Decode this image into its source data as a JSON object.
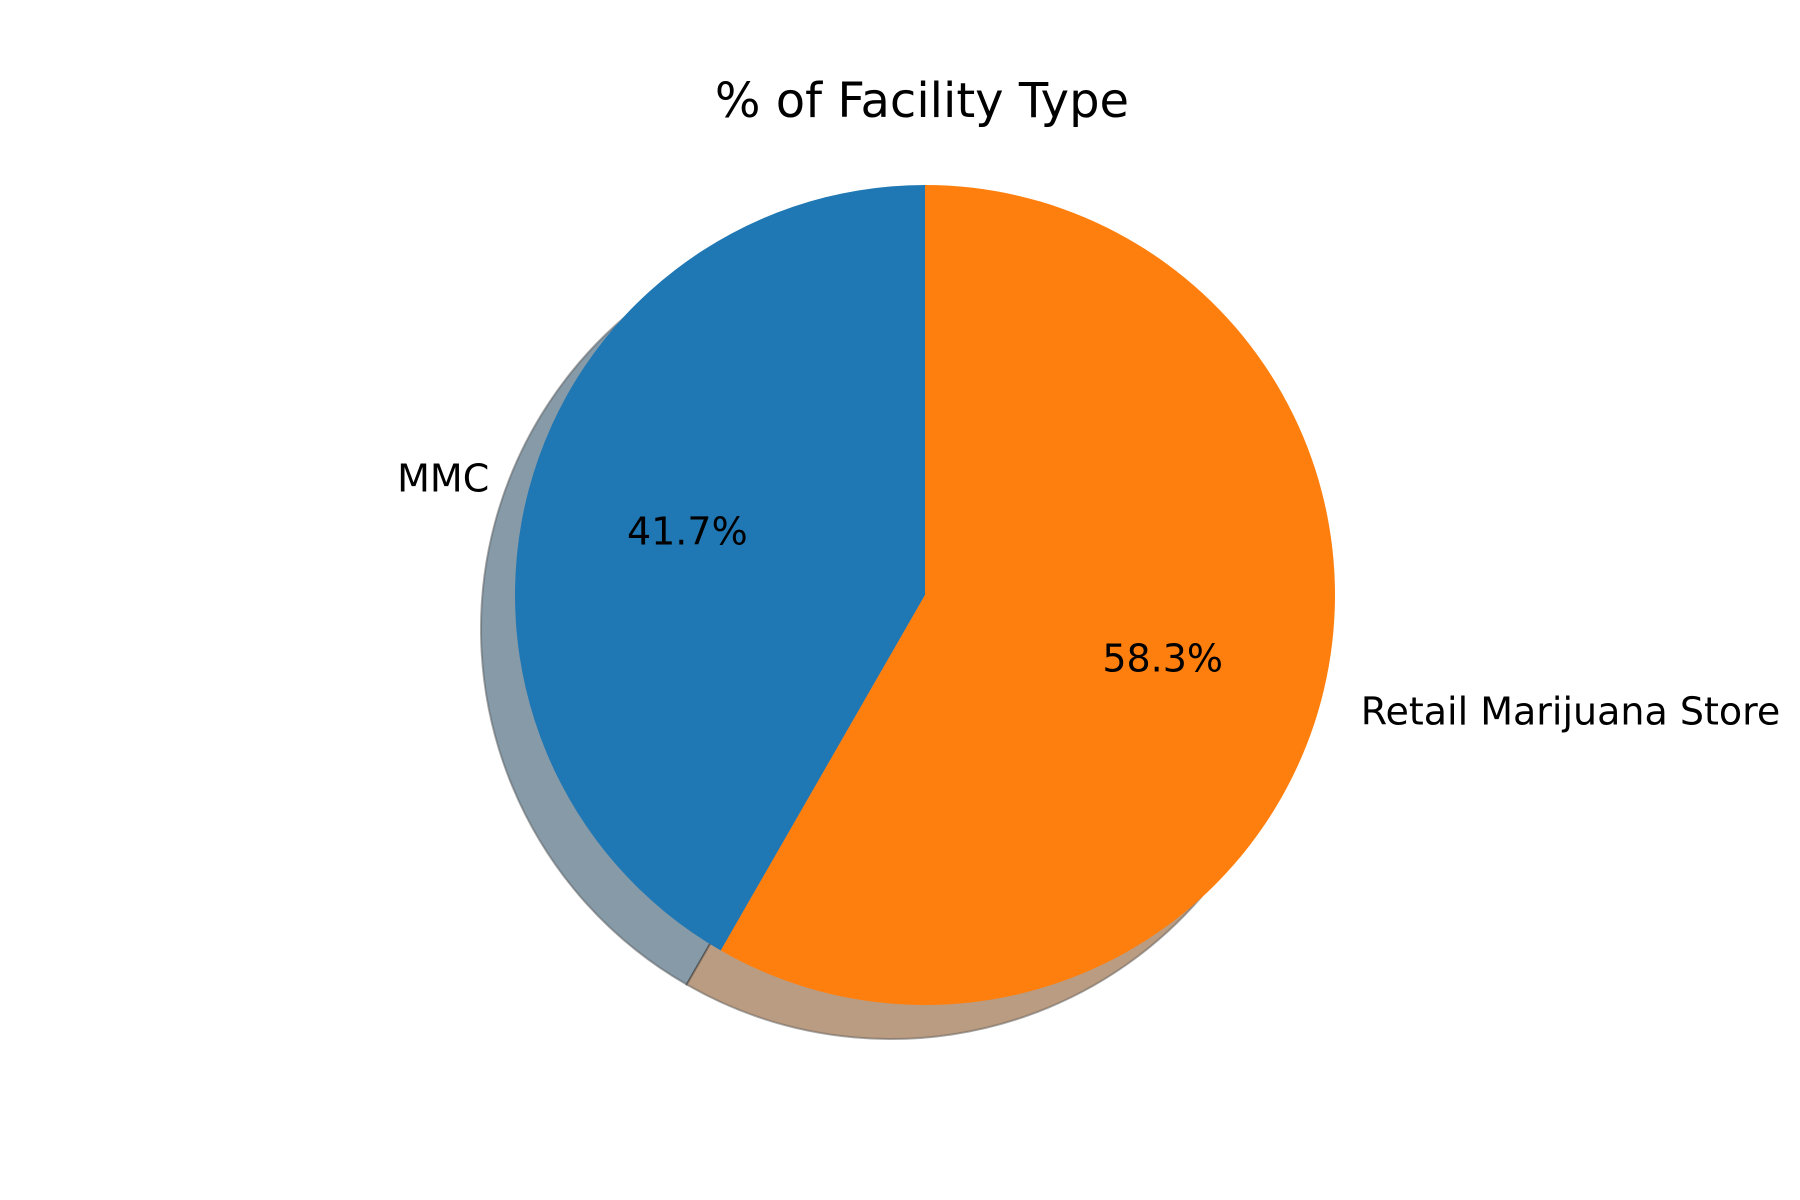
{
  "chart_data": {
    "type": "pie",
    "title": "% of Facility Type",
    "slices": [
      {
        "label": "MMC",
        "value": 41.7,
        "pct_label": "41.7%",
        "color": "#1f77b4"
      },
      {
        "label": "Retail Marijuana Store",
        "value": 58.3,
        "pct_label": "58.3%",
        "color": "#ff7f0e"
      }
    ],
    "start_angle_deg": 90,
    "direction": "counterclockwise",
    "shadow": true,
    "shadow_color": "#808080"
  }
}
